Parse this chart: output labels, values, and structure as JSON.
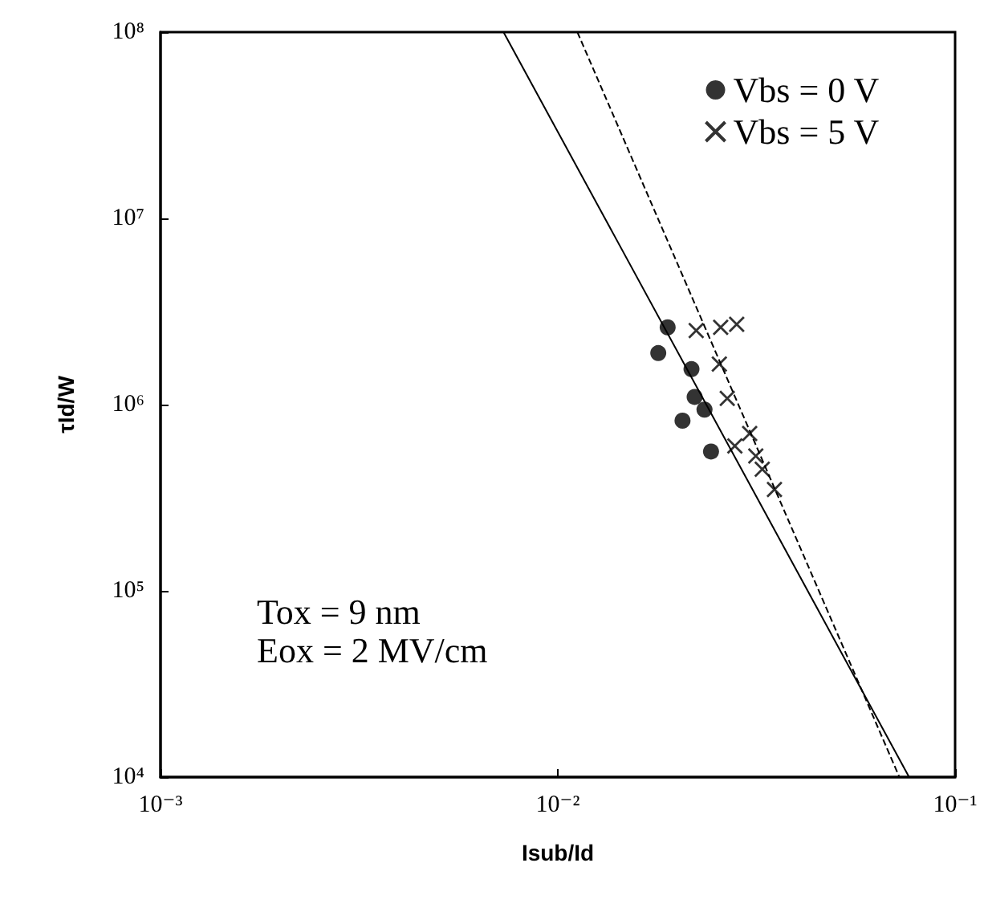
{
  "chart_data": {
    "type": "scatter",
    "xlabel": "Isub/Id",
    "ylabel": "τId/W",
    "log": "xy",
    "xlim": [
      0.001,
      0.1
    ],
    "ylim": [
      10000,
      100000000
    ],
    "xticks": [
      {
        "value": 0.001,
        "label": "10⁻³"
      },
      {
        "value": 0.01,
        "label": "10⁻²"
      },
      {
        "value": 0.1,
        "label": "10⁻¹"
      }
    ],
    "yticks": [
      {
        "value": 10000,
        "label": "10⁴"
      },
      {
        "value": 100000,
        "label": "10⁵"
      },
      {
        "value": 1000000,
        "label": "10⁶"
      },
      {
        "value": 10000000,
        "label": "10⁷"
      },
      {
        "value": 100000000,
        "label": "10⁸"
      }
    ],
    "grid": false,
    "legend": "top right",
    "annotations": [
      "Tox = 9 nm",
      "Eox = 2 MV/cm"
    ],
    "series": [
      {
        "name": "Vbs = 0 V",
        "color": "#000000",
        "marker": "circle",
        "x": [
          0.0189,
          0.0179,
          0.0217,
          0.0221,
          0.0234,
          0.0206,
          0.0243
        ],
        "values": [
          2600000,
          1890000,
          1550000,
          1100000,
          940000,
          820000,
          560000
        ]
      },
      {
        "name": "Vbs = 5 V",
        "color": "#000000",
        "marker": "cross",
        "x": [
          0.0223,
          0.0257,
          0.0282,
          0.0255,
          0.0267,
          0.0279,
          0.0304,
          0.0315,
          0.0327,
          0.0351
        ],
        "values": [
          2500000,
          2600000,
          2700000,
          1650000,
          1080000,
          600000,
          700000,
          530000,
          450000,
          350000
        ]
      },
      {
        "type": "line",
        "color": "#000000",
        "marker": "none",
        "line_style": "solid",
        "x": [
          0.0073,
          0.0766
        ],
        "values": [
          100000000,
          10000
        ]
      },
      {
        "type": "line",
        "color": "#000000",
        "marker": "none",
        "line_style": "dashed",
        "x": [
          0.0112,
          0.0724
        ],
        "values": [
          100000000,
          10000
        ]
      }
    ]
  }
}
